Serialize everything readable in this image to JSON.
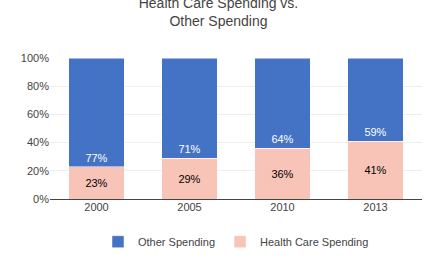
{
  "chart_data": {
    "type": "bar",
    "title": "Health Care Spending vs.\nOther Spending",
    "categories": [
      "2000",
      "2005",
      "2010",
      "2013"
    ],
    "stacked": true,
    "data_labels": true,
    "series": [
      {
        "name": "Health Care Spending",
        "color": "#F9C4B8",
        "values": [
          23,
          29,
          36,
          41
        ],
        "value_labels": [
          "23%",
          "29%",
          "36%",
          "41%"
        ]
      },
      {
        "name": "Other Spending",
        "color": "#4472C4",
        "values": [
          77,
          71,
          64,
          59
        ],
        "value_labels": [
          "77%",
          "71%",
          "64%",
          "59%"
        ]
      }
    ],
    "ylim": [
      0,
      100
    ],
    "yticks": [
      {
        "value": 0,
        "label": "0%"
      },
      {
        "value": 20,
        "label": "20%"
      },
      {
        "value": 40,
        "label": "40%"
      },
      {
        "value": 60,
        "label": "60%"
      },
      {
        "value": 80,
        "label": "80%"
      },
      {
        "value": 100,
        "label": "100%"
      }
    ],
    "grid": true,
    "legend": "bottom"
  }
}
